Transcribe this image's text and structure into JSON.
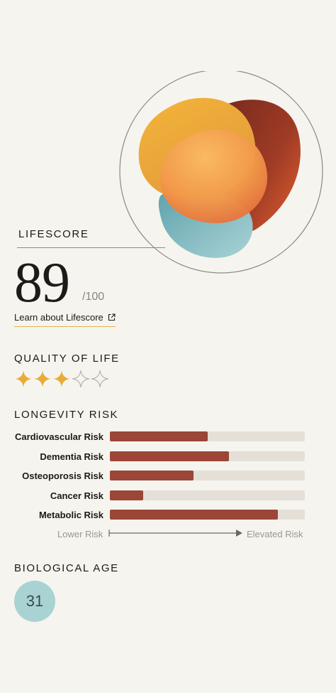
{
  "lifescore": {
    "label": "LIFESCORE",
    "value": "89",
    "max": "/100",
    "learn_link": "Learn about Lifescore"
  },
  "quality_of_life": {
    "label": "QUALITY OF LIFE",
    "rating": 3,
    "out_of": 5,
    "filled_color": "#e8ac3c",
    "empty_color": "#b9b3ac"
  },
  "longevity_risk": {
    "label": "LONGEVITY RISK",
    "items": [
      {
        "label": "Cardiovascular Risk",
        "level": 0.5
      },
      {
        "label": "Dementia Risk",
        "level": 0.61
      },
      {
        "label": "Osteoporosis Risk",
        "level": 0.43
      },
      {
        "label": "Cancer Risk",
        "level": 0.17
      },
      {
        "label": "Metabolic Risk",
        "level": 0.86
      }
    ],
    "scale_low": "Lower Risk",
    "scale_high": "Elevated Risk",
    "bar_color": "#9b4636",
    "track_color": "#e4e0d7"
  },
  "biological_age": {
    "label": "BIOLOGICAL AGE",
    "value": "31"
  }
}
